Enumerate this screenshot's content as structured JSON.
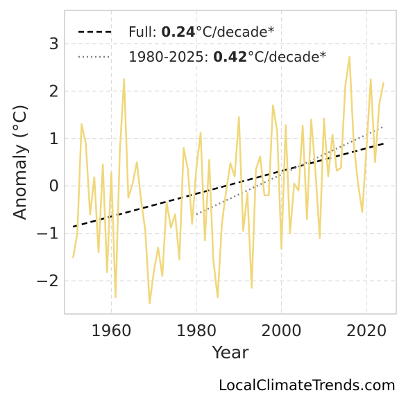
{
  "chart_data": {
    "type": "line",
    "title": "",
    "xlabel": "Year",
    "ylabel": "Anomaly (°C)",
    "xlim": [
      1949,
      2027
    ],
    "ylim": [
      -2.7,
      3.7
    ],
    "xticks": [
      1960,
      1980,
      2000,
      2020
    ],
    "xtick_labels": [
      "1960",
      "1980",
      "2000",
      "2020"
    ],
    "yticks": [
      -2,
      -1,
      0,
      1,
      2,
      3
    ],
    "ytick_labels": [
      "−2",
      "−1",
      "0",
      "1",
      "2",
      "3"
    ],
    "grid": true,
    "legend_position": "top-left",
    "colors": {
      "series": "#f0d77a",
      "full_trend": "#000000",
      "recent_trend": "#808080",
      "grid": "#dddddd",
      "frame": "#cccccc"
    },
    "series": [
      {
        "x": [
          1951,
          1952,
          1953,
          1954,
          1955,
          1956,
          1957,
          1958,
          1959,
          1960,
          1961,
          1962,
          1963,
          1964,
          1965,
          1966,
          1967,
          1968,
          1969,
          1970,
          1971,
          1972,
          1973,
          1974,
          1975,
          1976,
          1977,
          1978,
          1979,
          1980,
          1981,
          1982,
          1983,
          1984,
          1985,
          1986,
          1987,
          1988,
          1989,
          1990,
          1991,
          1992,
          1993,
          1994,
          1995,
          1996,
          1997,
          1998,
          1999,
          2000,
          2001,
          2002,
          2003,
          2004,
          2005,
          2006,
          2007,
          2008,
          2009,
          2010,
          2011,
          2012,
          2013,
          2014,
          2015,
          2016,
          2017,
          2018,
          2019,
          2020,
          2021,
          2022,
          2023,
          2024
        ],
        "y": [
          -1.52,
          -1.0,
          1.3,
          0.9,
          -0.6,
          0.18,
          -1.4,
          0.45,
          -1.82,
          0.28,
          -2.35,
          0.75,
          2.25,
          -0.25,
          0.05,
          0.5,
          -0.3,
          -0.95,
          -2.48,
          -1.8,
          -1.3,
          -1.9,
          -0.35,
          -0.88,
          -0.6,
          -1.55,
          0.8,
          0.35,
          -0.8,
          0.38,
          1.12,
          -1.15,
          0.55,
          -1.58,
          -2.35,
          -0.8,
          -0.1,
          0.48,
          0.2,
          1.45,
          -0.95,
          -0.15,
          -2.15,
          0.35,
          0.62,
          -0.2,
          -0.2,
          1.7,
          1.15,
          -1.32,
          1.28,
          -1.0,
          0.05,
          -0.1,
          1.27,
          -0.7,
          1.4,
          0.3,
          -1.1,
          1.42,
          0.2,
          1.08,
          0.32,
          0.38,
          2.1,
          2.72,
          0.9,
          0.05,
          -0.55,
          0.8,
          2.25,
          0.5,
          1.72,
          2.18
        ]
      }
    ],
    "trend_lines": [
      {
        "name": "Full",
        "x": [
          1951,
          2024
        ],
        "y": [
          -0.86,
          0.89
        ],
        "style": "dashed"
      },
      {
        "name": "1980-2025",
        "x": [
          1980,
          2024
        ],
        "y": [
          -0.6,
          1.25
        ],
        "style": "dotted"
      }
    ],
    "legend": [
      {
        "prefix": "Full: ",
        "value": "0.24",
        "suffix": "°C/decade*",
        "style": "dashed"
      },
      {
        "prefix": "1980-2025: ",
        "value": "0.42",
        "suffix": "°C/decade*",
        "style": "dotted"
      }
    ],
    "source": "LocalClimateTrends.com"
  }
}
